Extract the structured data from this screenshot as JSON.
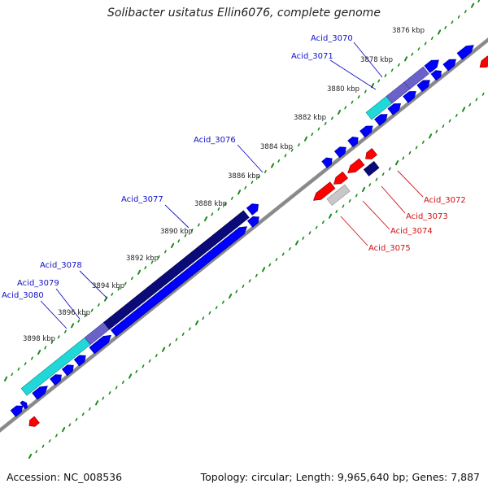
{
  "title": "Solibacter usitatus Ellin6076, complete genome",
  "footer": {
    "accession": "Accession: NC_008536",
    "summary": "Topology: circular; Length: 9,965,640 bp; Genes: 7,887"
  },
  "colors": {
    "backbone": "#8a8a8a",
    "tick": "#1a8a1a",
    "forward_gene": "#0000ff",
    "reverse_gene": "#ff0000",
    "forward_label": "#1010c8",
    "reverse_label": "#d01010",
    "dark_navy": "#0a0a78",
    "slate": "#6a62c8",
    "cyan": "#20d8d8",
    "gray": "#c8c8c8"
  },
  "scale_labels": [
    "3876 kbp",
    "3878 kbp",
    "3880 kbp",
    "3882 kbp",
    "3884 kbp",
    "3886 kbp",
    "3888 kbp",
    "3890 kbp",
    "3892 kbp",
    "3894 kbp",
    "3896 kbp",
    "3898 kbp"
  ],
  "gene_labels": {
    "forward": [
      "Acid_3070",
      "Acid_3071",
      "Acid_3076",
      "Acid_3077",
      "Acid_3078",
      "Acid_3079",
      "Acid_3080"
    ],
    "reverse": [
      "Acid_3072",
      "Acid_3073",
      "Acid_3074",
      "Acid_3075"
    ]
  }
}
